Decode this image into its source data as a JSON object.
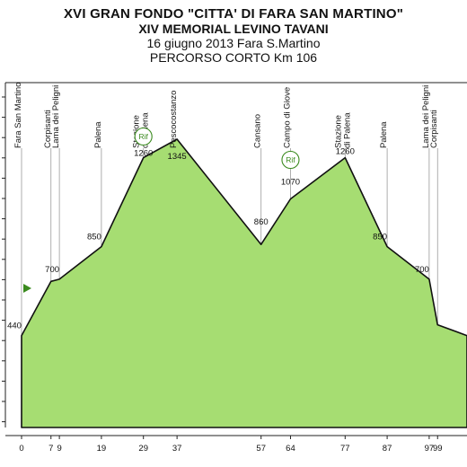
{
  "header": {
    "title_line1": "XVI GRAN FONDO \"CITTA' DI FARA SAN MARTINO\"",
    "title_line2": "XIV MEMORIAL LEVINO TAVANI",
    "title_line3": "16 giugno 2013 Fara S.Martino",
    "title_line4": "PERCORSO CORTO Km 106"
  },
  "colors": {
    "fill": "#a6dd72",
    "outline": "#111111",
    "rif": "#3a8a1e",
    "flag": "#3a8a1e"
  },
  "chart_data": {
    "type": "area",
    "x_unit": "km",
    "points": [
      {
        "km": 0,
        "alt": 440,
        "place": "Fara San Martino",
        "alt_label": "440",
        "km_label": "0"
      },
      {
        "km": 7,
        "alt": 690,
        "place": "Corpisanti",
        "alt_label": "",
        "km_label": "7"
      },
      {
        "km": 9,
        "alt": 700,
        "place": "Lama dei Peligni",
        "alt_label": "700",
        "km_label": "9"
      },
      {
        "km": 19,
        "alt": 850,
        "place": "Palena",
        "alt_label": "850",
        "km_label": "19"
      },
      {
        "km": 29,
        "alt": 1260,
        "place": "Stazione di Palena",
        "alt_label": "1260",
        "km_label": "29",
        "rif": true
      },
      {
        "km": 37,
        "alt": 1345,
        "place": "Pescocostanzo",
        "alt_label": "1345",
        "km_label": "37"
      },
      {
        "km": 57,
        "alt": 860,
        "place": "Cansano",
        "alt_label": "860",
        "km_label": "57"
      },
      {
        "km": 64,
        "alt": 1070,
        "place": "Campo di Giove",
        "alt_label": "1070",
        "km_label": "64",
        "rif": true
      },
      {
        "km": 77,
        "alt": 1260,
        "place": "Stazione di Palena",
        "alt_label": "1260",
        "km_label": "77"
      },
      {
        "km": 87,
        "alt": 850,
        "place": "Palena",
        "alt_label": "850",
        "km_label": "87"
      },
      {
        "km": 97,
        "alt": 700,
        "place": "Lama dei Peligni",
        "alt_label": "700",
        "km_label": "97"
      },
      {
        "km": 99,
        "alt": 490,
        "place": "Corpisanti",
        "alt_label": "",
        "km_label": "99"
      },
      {
        "km": 106,
        "alt": 440,
        "place": "",
        "alt_label": "",
        "km_label": ""
      }
    ],
    "rif_label": "Rif",
    "ylim": [
      0,
      1500
    ],
    "xlim": [
      0,
      106
    ]
  }
}
